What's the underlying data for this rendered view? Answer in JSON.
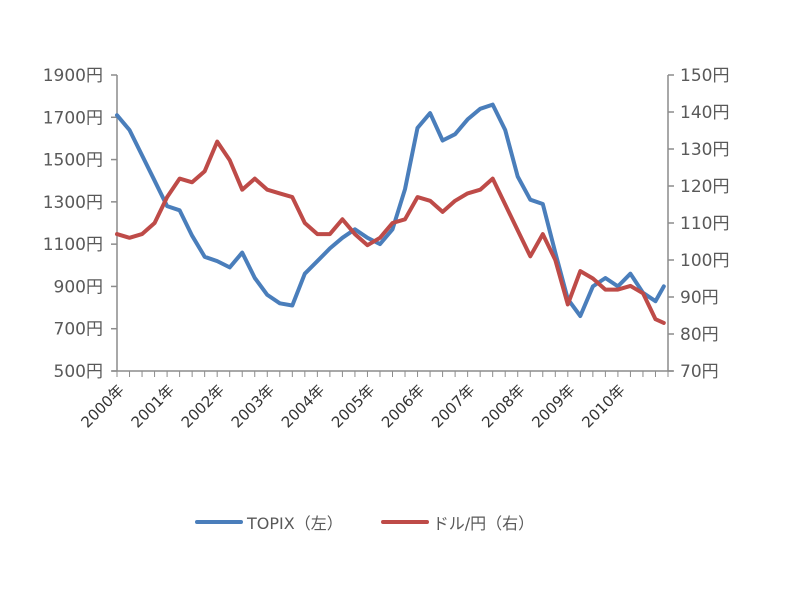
{
  "chart_data": {
    "type": "line",
    "title": "",
    "xlabel": "",
    "ylabel_left": "",
    "ylabel_right": "",
    "x_tick_labels": [
      "2000年",
      "2001年",
      "2002年",
      "2003年",
      "2004年",
      "2005年",
      "2006年",
      "2007年",
      "2008年",
      "2009年",
      "2010年"
    ],
    "y_left": {
      "ticks": [
        "1900円",
        "1700円",
        "1500円",
        "1300円",
        "1100円",
        "900円",
        "700円",
        "500円"
      ],
      "range": [
        500,
        1900
      ],
      "step": 200
    },
    "y_right": {
      "ticks": [
        "150円",
        "140円",
        "130円",
        "120円",
        "110円",
        "100円",
        "90円",
        "80円",
        "70円"
      ],
      "range": [
        70,
        150
      ],
      "step": 10
    },
    "grid": false,
    "legend_position": "bottom",
    "x": [
      "2000-01",
      "2000-04",
      "2000-07",
      "2000-10",
      "2001-01",
      "2001-04",
      "2001-07",
      "2001-10",
      "2002-01",
      "2002-04",
      "2002-07",
      "2002-10",
      "2003-01",
      "2003-04",
      "2003-07",
      "2003-10",
      "2004-01",
      "2004-04",
      "2004-07",
      "2004-10",
      "2005-01",
      "2005-04",
      "2005-07",
      "2005-10",
      "2006-01",
      "2006-04",
      "2006-07",
      "2006-10",
      "2007-01",
      "2007-04",
      "2007-07",
      "2007-10",
      "2008-01",
      "2008-04",
      "2008-07",
      "2008-10",
      "2009-01",
      "2009-04",
      "2009-07",
      "2009-10",
      "2010-01",
      "2010-04",
      "2010-07",
      "2010-10",
      "2010-12"
    ],
    "series": [
      {
        "name": "TOPIX（左）",
        "axis": "left",
        "color": "#4A7EBB",
        "values": [
          1710,
          1640,
          1520,
          1400,
          1280,
          1260,
          1140,
          1040,
          1020,
          990,
          1060,
          940,
          860,
          820,
          810,
          960,
          1020,
          1080,
          1130,
          1170,
          1130,
          1100,
          1170,
          1360,
          1650,
          1720,
          1590,
          1620,
          1690,
          1740,
          1760,
          1640,
          1420,
          1310,
          1290,
          1060,
          840,
          760,
          900,
          940,
          900,
          960,
          870,
          830,
          900
        ]
      },
      {
        "name": "ドル/円（右）",
        "axis": "right",
        "color": "#BE4B48",
        "values": [
          107,
          106,
          107,
          110,
          117,
          122,
          121,
          124,
          132,
          127,
          119,
          122,
          119,
          118,
          117,
          110,
          107,
          107,
          111,
          107,
          104,
          106,
          110,
          111,
          117,
          116,
          113,
          116,
          118,
          119,
          122,
          115,
          108,
          101,
          107,
          100,
          88,
          97,
          95,
          92,
          92,
          93,
          91,
          84,
          83
        ]
      }
    ]
  },
  "legend": {
    "items": [
      {
        "label": "TOPIX（左）",
        "color": "#4A7EBB"
      },
      {
        "label": "ドル/円（右）",
        "color": "#BE4B48"
      }
    ]
  }
}
